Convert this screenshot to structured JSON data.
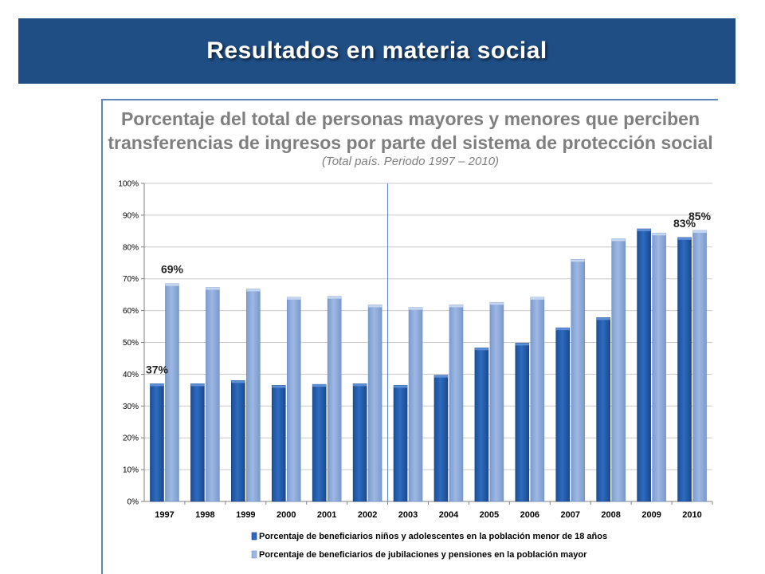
{
  "slide": {
    "title": "Resultados en materia social"
  },
  "chart_data": {
    "type": "bar",
    "title_line1": "Porcentaje del total de personas mayores y menores que perciben",
    "title_line2": "transferencias de ingresos por parte del sistema de protección social",
    "subtitle": "(Total país. Periodo 1997 – 2010)",
    "categories": [
      "1997",
      "1998",
      "1999",
      "2000",
      "2001",
      "2002",
      "2003",
      "2004",
      "2005",
      "2006",
      "2007",
      "2008",
      "2009",
      "2010"
    ],
    "series": [
      {
        "name": "Porcentaje de beneficiarios niños y adolescentes en la población menor de 18 años",
        "color": "#2e6bbf",
        "values": [
          37,
          37,
          38,
          36.5,
          36.8,
          37,
          36.5,
          39.7,
          48.3,
          49.8,
          54.6,
          57.8,
          85.7,
          83
        ]
      },
      {
        "name": "Porcentaje de beneficiarios de jubilaciones y pensiones en la población mayor",
        "color": "#9db8e3",
        "values": [
          68.5,
          67.3,
          66.8,
          64.2,
          64.5,
          61.8,
          61,
          61.8,
          62.6,
          64.2,
          76.1,
          82.6,
          84.4,
          85.2
        ]
      }
    ],
    "yticks": [
      "0%",
      "10%",
      "20%",
      "30%",
      "40%",
      "50%",
      "60%",
      "70%",
      "80%",
      "90%",
      "100%"
    ],
    "ylim": [
      0,
      100
    ],
    "annotations": [
      {
        "text": "37%",
        "category": "1997",
        "series": 0
      },
      {
        "text": "69%",
        "category": "1997",
        "series": 1
      },
      {
        "text": "83%",
        "category": "2010",
        "series": 0
      },
      {
        "text": "85%",
        "category": "2010",
        "series": 1
      }
    ],
    "separator_after": "2002",
    "legend_position": "bottom"
  }
}
